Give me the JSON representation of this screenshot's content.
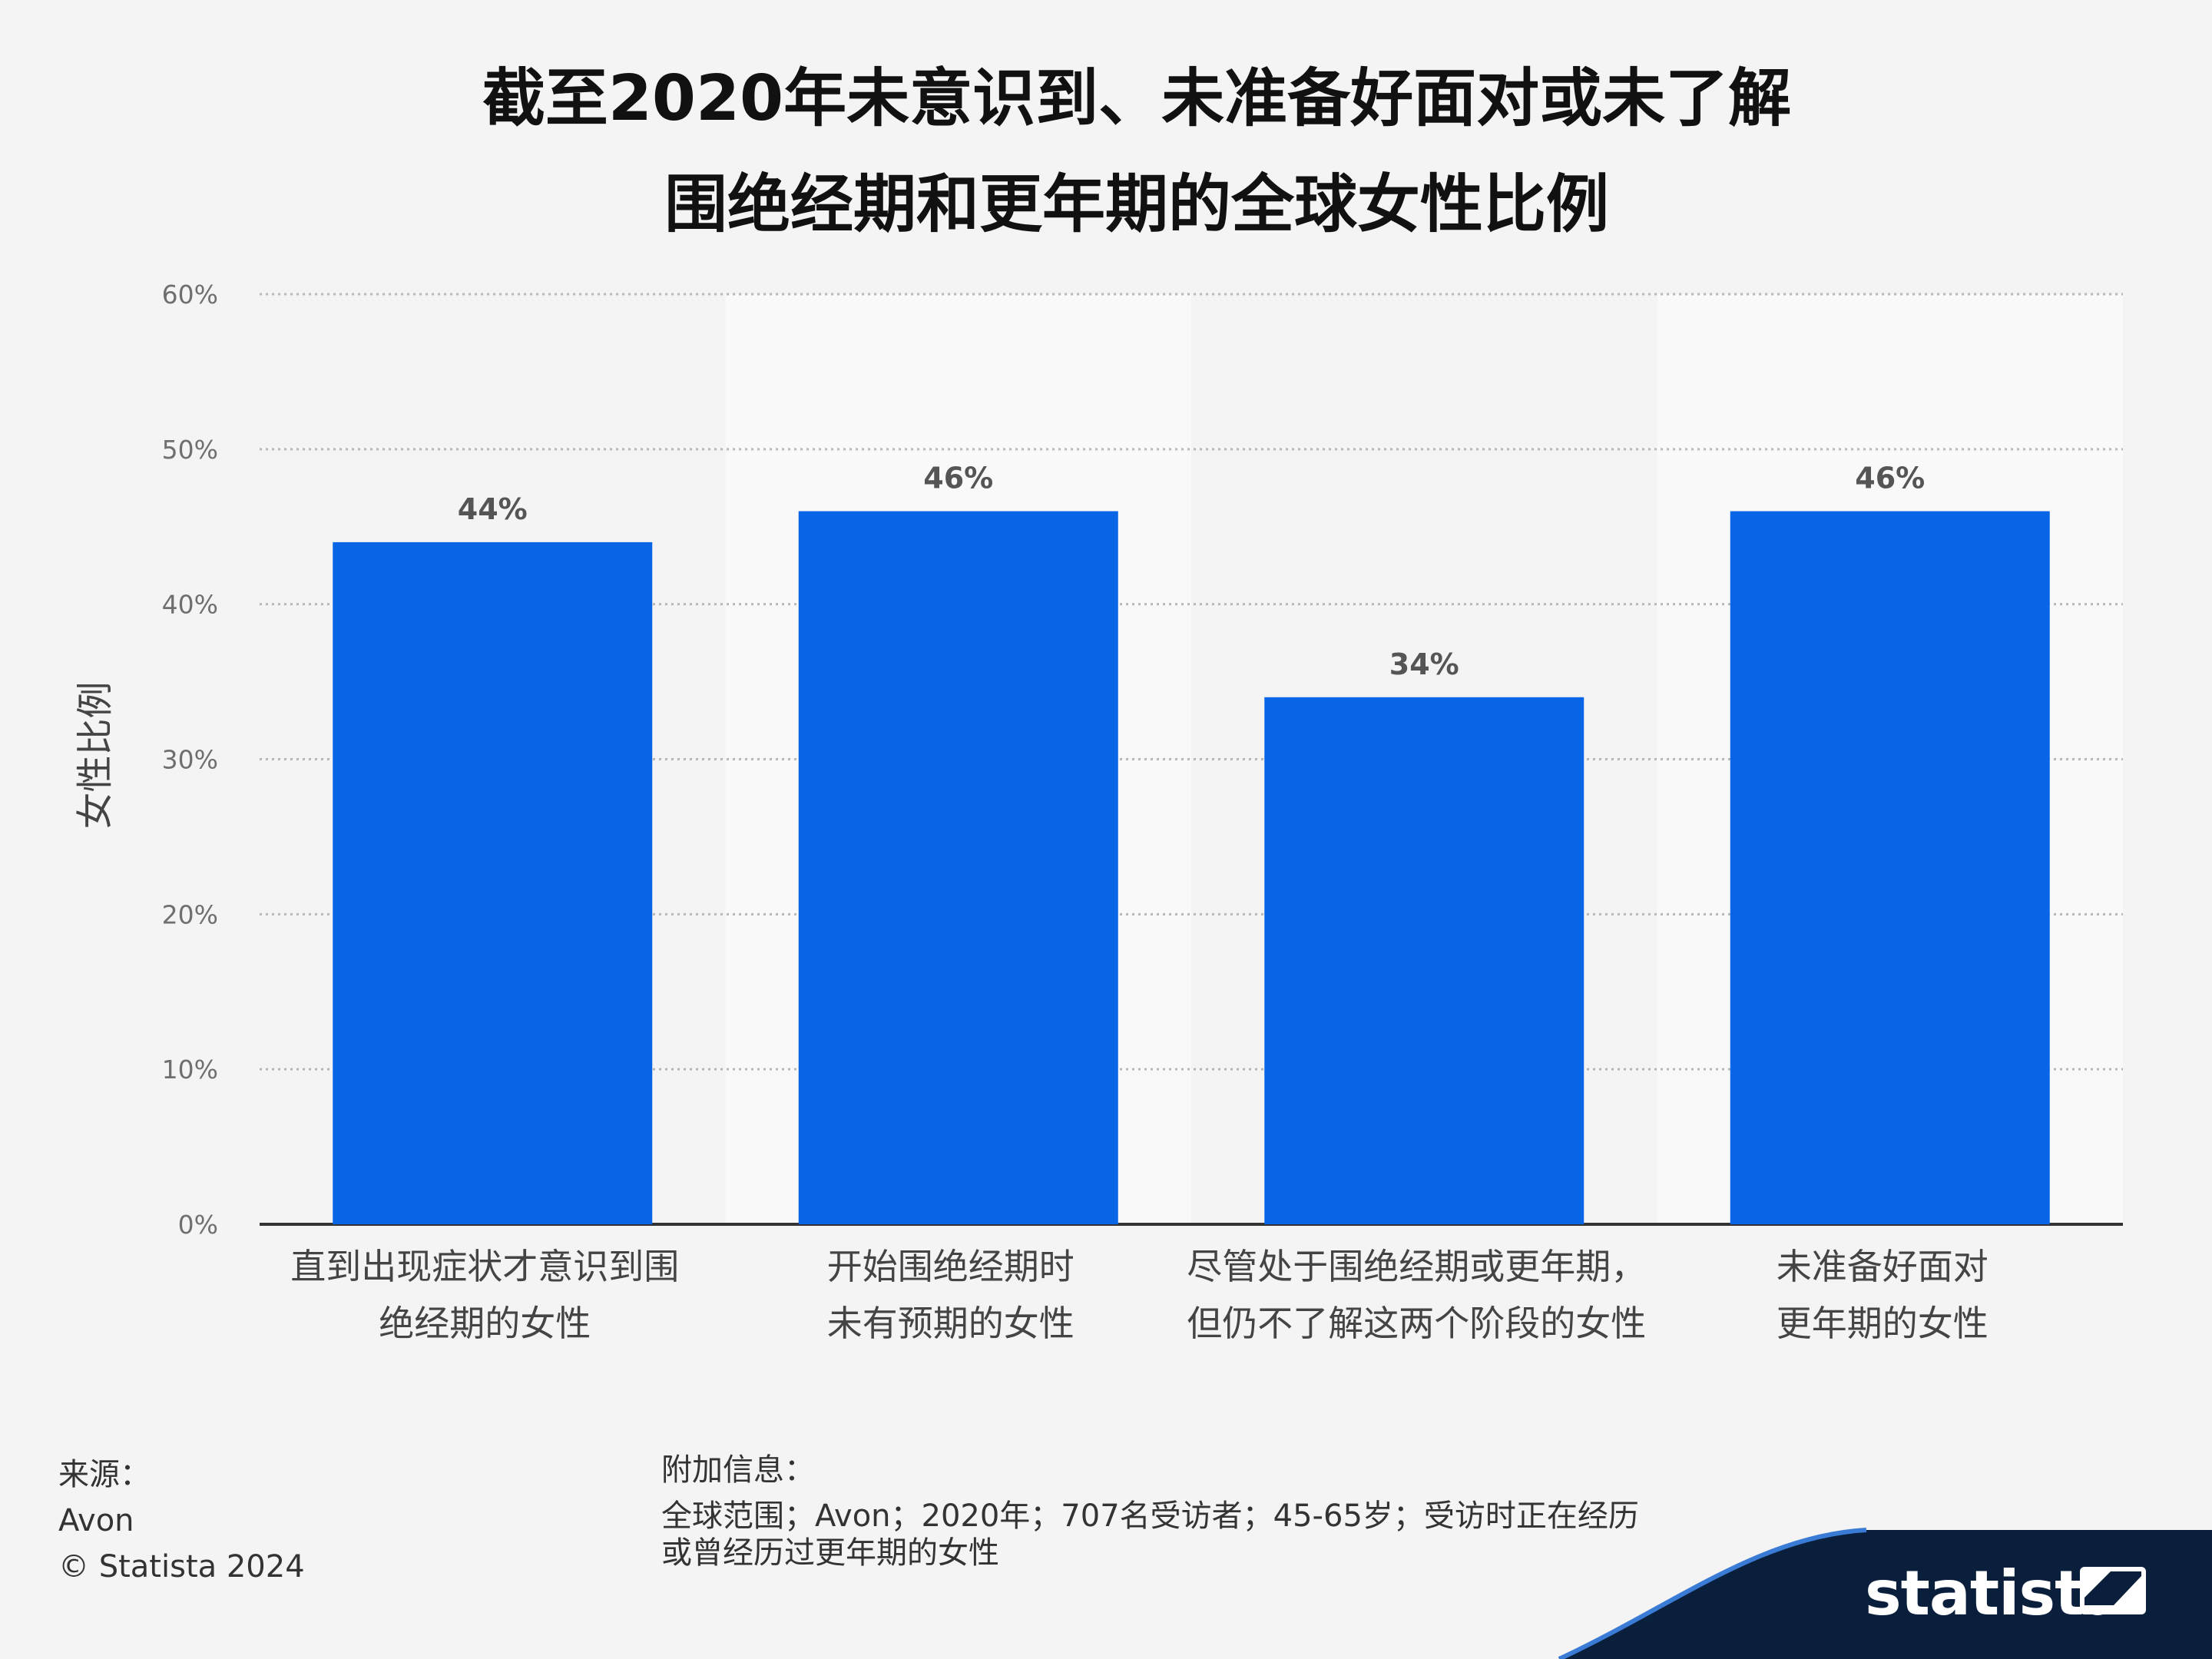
{
  "title": {
    "line1": "截至2020年未意识到、未准备好面对或未了解",
    "line2": "围绝经期和更年期的全球女性比例"
  },
  "chart_data": {
    "type": "bar",
    "title": "截至2020年未意识到、未准备好面对或未了解围绝经期和更年期的全球女性比例",
    "ylabel": "女性比例",
    "xlabel": "",
    "ylim": [
      0,
      60
    ],
    "yticks": [
      "0%",
      "10%",
      "20%",
      "30%",
      "40%",
      "50%",
      "60%"
    ],
    "grid": true,
    "categories": [
      [
        "直到出现症状才意识到围",
        "绝经期的女性"
      ],
      [
        "开始围绝经期时",
        "未有预期的女性"
      ],
      [
        "尽管处于围绝经期或更年期，",
        "但仍不了解这两个阶段的女性"
      ],
      [
        "未准备好面对",
        "更年期的女性"
      ]
    ],
    "values": [
      44,
      46,
      34,
      46
    ],
    "data_labels": [
      "44%",
      "46%",
      "34%",
      "46%"
    ],
    "bar_color": "#0866e6"
  },
  "footer": {
    "source_heading": "来源：",
    "source_name": "Avon",
    "copyright": "© Statista 2024",
    "info_heading": "附加信息：",
    "info_line1": "全球范围；Avon；2020年；707名受访者；45-65岁；受访时正在经历",
    "info_line2": "或曾经历过更年期的女性"
  },
  "brand": {
    "name": "statista",
    "band_color": "#0a1f3c"
  }
}
